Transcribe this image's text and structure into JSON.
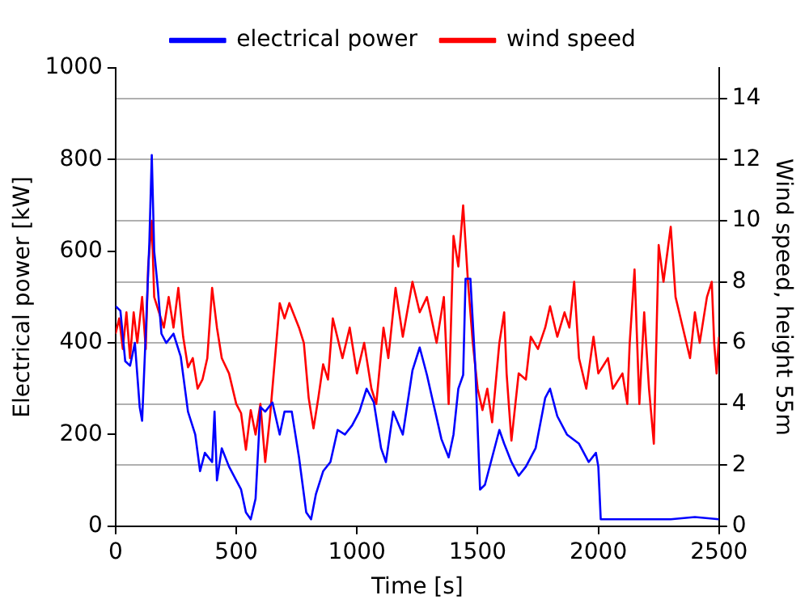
{
  "chart_data": {
    "type": "line",
    "xlabel": "Time [s]",
    "ylabel": "Electrical power [kW]",
    "y2label": "Wind speed, height 55m",
    "xlim": [
      0,
      2500
    ],
    "xticks": [
      0,
      500,
      1000,
      1500,
      2000,
      2500
    ],
    "ylim": [
      0,
      1000
    ],
    "yticks": [
      0,
      200,
      400,
      600,
      800,
      1000
    ],
    "y2lim": [
      0,
      15
    ],
    "y2ticks": [
      0,
      2,
      4,
      6,
      8,
      10,
      12,
      14
    ],
    "grid": "y2",
    "legend": "top",
    "marker": "none",
    "line_style": "solid",
    "series": [
      {
        "name": "electrical power",
        "color": "#0000ff",
        "x": [
          0,
          20,
          40,
          60,
          80,
          100,
          110,
          125,
          140,
          150,
          160,
          175,
          190,
          210,
          240,
          270,
          300,
          330,
          350,
          370,
          400,
          410,
          420,
          440,
          470,
          500,
          520,
          540,
          560,
          580,
          600,
          620,
          650,
          680,
          700,
          730,
          760,
          790,
          810,
          830,
          860,
          890,
          920,
          950,
          980,
          1010,
          1040,
          1070,
          1100,
          1120,
          1150,
          1190,
          1230,
          1260,
          1290,
          1320,
          1350,
          1380,
          1400,
          1420,
          1440,
          1450,
          1470,
          1490,
          1510,
          1530,
          1560,
          1590,
          1610,
          1640,
          1670,
          1700,
          1740,
          1780,
          1800,
          1830,
          1870,
          1920,
          1960,
          1990,
          2000,
          2010,
          2100,
          2300,
          2400,
          2500
        ],
        "values": [
          480,
          470,
          360,
          350,
          400,
          260,
          230,
          420,
          620,
          810,
          600,
          520,
          420,
          400,
          420,
          370,
          250,
          200,
          120,
          160,
          140,
          250,
          100,
          170,
          130,
          100,
          80,
          30,
          15,
          60,
          260,
          250,
          270,
          200,
          250,
          250,
          150,
          30,
          15,
          70,
          120,
          140,
          210,
          200,
          220,
          250,
          300,
          270,
          170,
          140,
          250,
          200,
          340,
          390,
          330,
          260,
          190,
          150,
          200,
          300,
          330,
          540,
          540,
          350,
          80,
          90,
          150,
          210,
          180,
          140,
          110,
          130,
          170,
          280,
          300,
          240,
          200,
          180,
          140,
          160,
          130,
          15,
          15,
          15,
          20,
          15
        ]
      },
      {
        "name": "wind speed",
        "color": "#ff0000",
        "axis": "y2",
        "x": [
          0,
          15,
          30,
          45,
          60,
          75,
          90,
          110,
          125,
          135,
          150,
          160,
          180,
          200,
          220,
          240,
          260,
          280,
          300,
          320,
          340,
          360,
          380,
          400,
          420,
          440,
          470,
          500,
          520,
          540,
          560,
          580,
          600,
          620,
          640,
          680,
          700,
          720,
          760,
          780,
          800,
          820,
          840,
          860,
          880,
          900,
          940,
          970,
          1000,
          1030,
          1060,
          1080,
          1110,
          1130,
          1160,
          1190,
          1230,
          1260,
          1290,
          1330,
          1360,
          1380,
          1400,
          1420,
          1440,
          1460,
          1480,
          1500,
          1520,
          1540,
          1560,
          1590,
          1610,
          1620,
          1640,
          1670,
          1700,
          1720,
          1750,
          1780,
          1800,
          1830,
          1860,
          1880,
          1900,
          1920,
          1950,
          1980,
          2000,
          2040,
          2060,
          2100,
          2120,
          2130,
          2150,
          2170,
          2190,
          2210,
          2230,
          2250,
          2270,
          2300,
          2320,
          2350,
          2380,
          2400,
          2420,
          2450,
          2470,
          2480,
          2490,
          2500
        ],
        "values": [
          6.3,
          6.8,
          5.8,
          7.0,
          5.5,
          7.0,
          6.0,
          7.5,
          5.8,
          8.5,
          10.0,
          7.5,
          7.0,
          6.5,
          7.5,
          6.5,
          7.8,
          6.2,
          5.2,
          5.5,
          4.5,
          4.8,
          5.5,
          7.8,
          6.5,
          5.5,
          5.0,
          4.0,
          3.7,
          2.5,
          3.8,
          3.0,
          4.0,
          2.1,
          3.6,
          7.3,
          6.8,
          7.3,
          6.5,
          6.0,
          4.2,
          3.2,
          4.2,
          5.3,
          4.8,
          6.8,
          5.5,
          6.5,
          5.0,
          6.0,
          4.5,
          4.0,
          6.5,
          5.5,
          7.8,
          6.2,
          8.0,
          7.0,
          7.5,
          6.0,
          7.5,
          4.0,
          9.5,
          8.5,
          10.5,
          8.0,
          6.0,
          4.5,
          3.8,
          4.5,
          3.4,
          6.0,
          7.0,
          5.0,
          2.8,
          5.0,
          4.8,
          6.2,
          5.8,
          6.5,
          7.2,
          6.2,
          7.0,
          6.5,
          8.0,
          5.5,
          4.5,
          6.2,
          5.0,
          5.5,
          4.5,
          5.0,
          4.0,
          6.0,
          8.4,
          4.0,
          7.0,
          4.5,
          2.7,
          9.2,
          8.0,
          9.8,
          7.5,
          6.5,
          5.5,
          7.0,
          6.0,
          7.5,
          8.0,
          6.0,
          5.0,
          6.2
        ]
      }
    ]
  }
}
